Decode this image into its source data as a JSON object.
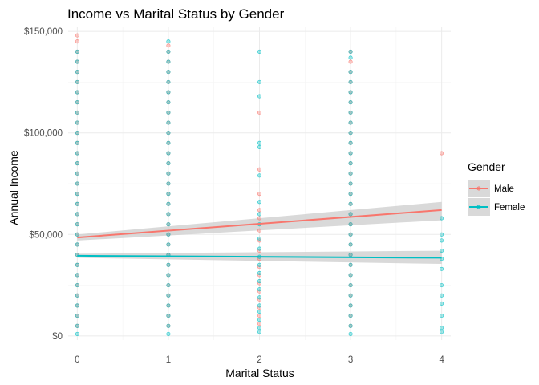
{
  "chart_data": {
    "type": "scatter",
    "title": "Income vs Marital Status by Gender",
    "xlabel": "Marital Status",
    "ylabel": "Annual Income",
    "xlim": [
      -0.1,
      4.1
    ],
    "ylim": [
      -2000,
      152000
    ],
    "x_ticks": [
      {
        "value": 0,
        "label": "0"
      },
      {
        "value": 1,
        "label": "1"
      },
      {
        "value": 2,
        "label": "2"
      },
      {
        "value": 3,
        "label": "3"
      },
      {
        "value": 4,
        "label": "4"
      }
    ],
    "y_ticks": [
      {
        "value": 0,
        "label": "$0"
      },
      {
        "value": 50000,
        "label": "$50,000"
      },
      {
        "value": 100000,
        "label": "$100,000"
      },
      {
        "value": 150000,
        "label": "$150,000"
      }
    ],
    "grid": true,
    "legend": {
      "title": "Gender",
      "position": "right"
    },
    "series": [
      {
        "name": "Male",
        "color": "#F8766D",
        "points": [
          [
            0,
            148000
          ],
          [
            0,
            145000
          ],
          [
            0,
            140000
          ],
          [
            0,
            135000
          ],
          [
            0,
            130000
          ],
          [
            0,
            125000
          ],
          [
            0,
            120000
          ],
          [
            0,
            115000
          ],
          [
            0,
            110000
          ],
          [
            0,
            105000
          ],
          [
            0,
            100000
          ],
          [
            0,
            95000
          ],
          [
            0,
            90000
          ],
          [
            0,
            85000
          ],
          [
            0,
            80000
          ],
          [
            0,
            75000
          ],
          [
            0,
            70000
          ],
          [
            0,
            65000
          ],
          [
            0,
            60000
          ],
          [
            0,
            55000
          ],
          [
            0,
            50000
          ],
          [
            0,
            45000
          ],
          [
            0,
            40000
          ],
          [
            0,
            35000
          ],
          [
            0,
            30000
          ],
          [
            0,
            25000
          ],
          [
            0,
            20000
          ],
          [
            0,
            15000
          ],
          [
            0,
            10000
          ],
          [
            0,
            5000
          ],
          [
            1,
            143000
          ],
          [
            1,
            140000
          ],
          [
            1,
            135000
          ],
          [
            1,
            130000
          ],
          [
            1,
            125000
          ],
          [
            1,
            120000
          ],
          [
            1,
            115000
          ],
          [
            1,
            110000
          ],
          [
            1,
            105000
          ],
          [
            1,
            100000
          ],
          [
            1,
            95000
          ],
          [
            1,
            90000
          ],
          [
            1,
            85000
          ],
          [
            1,
            80000
          ],
          [
            1,
            75000
          ],
          [
            1,
            70000
          ],
          [
            1,
            65000
          ],
          [
            1,
            60000
          ],
          [
            1,
            55000
          ],
          [
            1,
            50000
          ],
          [
            1,
            45000
          ],
          [
            1,
            40000
          ],
          [
            1,
            35000
          ],
          [
            1,
            30000
          ],
          [
            1,
            25000
          ],
          [
            1,
            20000
          ],
          [
            1,
            15000
          ],
          [
            1,
            10000
          ],
          [
            1,
            5000
          ],
          [
            2,
            110000
          ],
          [
            2,
            82000
          ],
          [
            2,
            70000
          ],
          [
            2,
            62000
          ],
          [
            2,
            58000
          ],
          [
            2,
            52000
          ],
          [
            2,
            47000
          ],
          [
            2,
            42000
          ],
          [
            2,
            38000
          ],
          [
            2,
            34000
          ],
          [
            2,
            30000
          ],
          [
            2,
            26000
          ],
          [
            2,
            22000
          ],
          [
            2,
            18000
          ],
          [
            2,
            14000
          ],
          [
            2,
            10000
          ],
          [
            2,
            6000
          ],
          [
            3,
            140000
          ],
          [
            3,
            135000
          ],
          [
            3,
            130000
          ],
          [
            3,
            125000
          ],
          [
            3,
            120000
          ],
          [
            3,
            115000
          ],
          [
            3,
            110000
          ],
          [
            3,
            105000
          ],
          [
            3,
            100000
          ],
          [
            3,
            95000
          ],
          [
            3,
            90000
          ],
          [
            3,
            85000
          ],
          [
            3,
            80000
          ],
          [
            3,
            75000
          ],
          [
            3,
            70000
          ],
          [
            3,
            65000
          ],
          [
            3,
            60000
          ],
          [
            3,
            55000
          ],
          [
            3,
            50000
          ],
          [
            3,
            45000
          ],
          [
            3,
            40000
          ],
          [
            3,
            35000
          ],
          [
            3,
            30000
          ],
          [
            3,
            25000
          ],
          [
            3,
            20000
          ],
          [
            3,
            15000
          ],
          [
            3,
            10000
          ],
          [
            3,
            5000
          ],
          [
            4,
            90000
          ]
        ],
        "trend": {
          "x": [
            0,
            4
          ],
          "y": [
            48500,
            62000
          ],
          "ci": [
            [
              47000,
              50000
            ],
            [
              57000,
              66000
            ]
          ]
        }
      },
      {
        "name": "Female",
        "color": "#00BFC4",
        "points": [
          [
            0,
            140000
          ],
          [
            0,
            135000
          ],
          [
            0,
            130000
          ],
          [
            0,
            125000
          ],
          [
            0,
            120000
          ],
          [
            0,
            115000
          ],
          [
            0,
            110000
          ],
          [
            0,
            105000
          ],
          [
            0,
            100000
          ],
          [
            0,
            95000
          ],
          [
            0,
            90000
          ],
          [
            0,
            85000
          ],
          [
            0,
            80000
          ],
          [
            0,
            75000
          ],
          [
            0,
            70000
          ],
          [
            0,
            65000
          ],
          [
            0,
            60000
          ],
          [
            0,
            55000
          ],
          [
            0,
            50000
          ],
          [
            0,
            45000
          ],
          [
            0,
            40000
          ],
          [
            0,
            35000
          ],
          [
            0,
            30000
          ],
          [
            0,
            25000
          ],
          [
            0,
            20000
          ],
          [
            0,
            15000
          ],
          [
            0,
            10000
          ],
          [
            0,
            5000
          ],
          [
            0,
            1000
          ],
          [
            1,
            145000
          ],
          [
            1,
            140000
          ],
          [
            1,
            135000
          ],
          [
            1,
            130000
          ],
          [
            1,
            125000
          ],
          [
            1,
            120000
          ],
          [
            1,
            115000
          ],
          [
            1,
            110000
          ],
          [
            1,
            105000
          ],
          [
            1,
            100000
          ],
          [
            1,
            95000
          ],
          [
            1,
            90000
          ],
          [
            1,
            85000
          ],
          [
            1,
            80000
          ],
          [
            1,
            75000
          ],
          [
            1,
            70000
          ],
          [
            1,
            65000
          ],
          [
            1,
            60000
          ],
          [
            1,
            55000
          ],
          [
            1,
            50000
          ],
          [
            1,
            45000
          ],
          [
            1,
            40000
          ],
          [
            1,
            35000
          ],
          [
            1,
            30000
          ],
          [
            1,
            25000
          ],
          [
            1,
            20000
          ],
          [
            1,
            15000
          ],
          [
            1,
            10000
          ],
          [
            1,
            5000
          ],
          [
            1,
            1000
          ],
          [
            2,
            140000
          ],
          [
            2,
            125000
          ],
          [
            2,
            118000
          ],
          [
            2,
            95000
          ],
          [
            2,
            93000
          ],
          [
            2,
            79000
          ],
          [
            2,
            66000
          ],
          [
            2,
            60000
          ],
          [
            2,
            55000
          ],
          [
            2,
            48000
          ],
          [
            2,
            43000
          ],
          [
            2,
            39000
          ],
          [
            2,
            35000
          ],
          [
            2,
            31000
          ],
          [
            2,
            27000
          ],
          [
            2,
            23000
          ],
          [
            2,
            19000
          ],
          [
            2,
            15000
          ],
          [
            2,
            12000
          ],
          [
            2,
            8000
          ],
          [
            2,
            4000
          ],
          [
            2,
            2000
          ],
          [
            3,
            140000
          ],
          [
            3,
            137000
          ],
          [
            3,
            130000
          ],
          [
            3,
            125000
          ],
          [
            3,
            120000
          ],
          [
            3,
            115000
          ],
          [
            3,
            110000
          ],
          [
            3,
            105000
          ],
          [
            3,
            100000
          ],
          [
            3,
            95000
          ],
          [
            3,
            90000
          ],
          [
            3,
            85000
          ],
          [
            3,
            80000
          ],
          [
            3,
            75000
          ],
          [
            3,
            70000
          ],
          [
            3,
            65000
          ],
          [
            3,
            60000
          ],
          [
            3,
            55000
          ],
          [
            3,
            50000
          ],
          [
            3,
            45000
          ],
          [
            3,
            40000
          ],
          [
            3,
            35000
          ],
          [
            3,
            30000
          ],
          [
            3,
            25000
          ],
          [
            3,
            20000
          ],
          [
            3,
            15000
          ],
          [
            3,
            10000
          ],
          [
            3,
            5000
          ],
          [
            3,
            1000
          ],
          [
            4,
            58000
          ],
          [
            4,
            50000
          ],
          [
            4,
            47000
          ],
          [
            4,
            42000
          ],
          [
            4,
            38000
          ],
          [
            4,
            33000
          ],
          [
            4,
            25000
          ],
          [
            4,
            20000
          ],
          [
            4,
            16000
          ],
          [
            4,
            10000
          ],
          [
            4,
            4000
          ],
          [
            4,
            2000
          ]
        ],
        "trend": {
          "x": [
            0,
            4
          ],
          "y": [
            39500,
            38500
          ],
          "ci": [
            [
              38500,
              40500
            ],
            [
              35500,
              42000
            ]
          ]
        }
      }
    ]
  }
}
